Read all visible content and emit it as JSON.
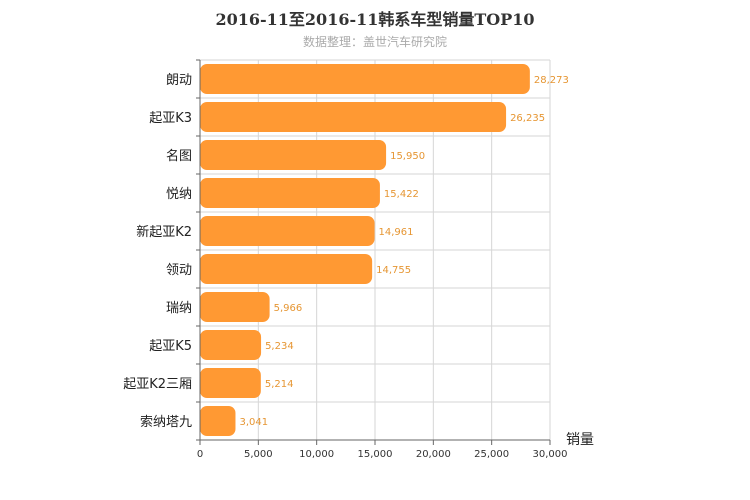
{
  "chart_data": {
    "type": "bar",
    "orientation": "horizontal",
    "title": "2016-11至2016-11韩系车型销量TOP10",
    "subtitle": "数据整理：盖世汽车研究院",
    "categories": [
      "朗动",
      "起亚K3",
      "名图",
      "悦纳",
      "新起亚K2",
      "领动",
      "瑞纳",
      "起亚K5",
      "起亚K2三厢",
      "索纳塔九"
    ],
    "values": [
      28273,
      26235,
      15950,
      15422,
      14961,
      14755,
      5966,
      5234,
      5214,
      3041
    ],
    "value_labels": [
      "28,273",
      "26,235",
      "15,950",
      "15,422",
      "14,961",
      "14,755",
      "5,966",
      "5,234",
      "5,214",
      "3,041"
    ],
    "xlabel": "销量",
    "xlim": [
      0,
      30000
    ],
    "xticks": [
      0,
      5000,
      10000,
      15000,
      20000,
      25000,
      30000
    ],
    "xtick_labels": [
      "0",
      "5,000",
      "10,000",
      "15,000",
      "20,000",
      "25,000",
      "30,000"
    ],
    "grid": true,
    "bar_color": "#ff9933"
  }
}
